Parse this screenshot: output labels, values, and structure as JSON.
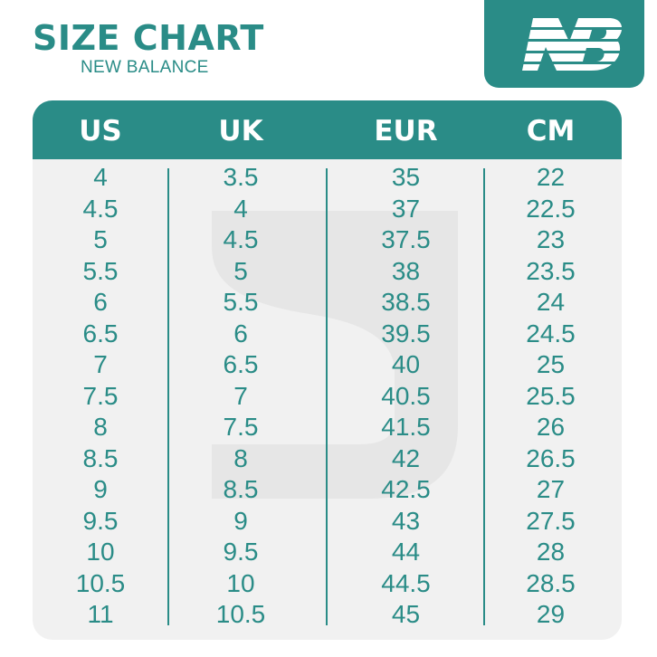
{
  "header": {
    "title": "SIZE CHART",
    "subtitle": "NEW BALANCE"
  },
  "logo": {
    "text": "NB",
    "icon": "new-balance-logo"
  },
  "colors": {
    "accent": "#2a8c87",
    "card_bg": "#f1f1f1",
    "header_text": "#ffffff"
  },
  "table": {
    "columns": [
      "US",
      "UK",
      "EUR",
      "CM"
    ],
    "rows": [
      [
        "4",
        "3.5",
        "35",
        "22"
      ],
      [
        "4.5",
        "4",
        "37",
        "22.5"
      ],
      [
        "5",
        "4.5",
        "37.5",
        "23"
      ],
      [
        "5.5",
        "5",
        "38",
        "23.5"
      ],
      [
        "6",
        "5.5",
        "38.5",
        "24"
      ],
      [
        "6.5",
        "6",
        "39.5",
        "24.5"
      ],
      [
        "7",
        "6.5",
        "40",
        "25"
      ],
      [
        "7.5",
        "7",
        "40.5",
        "25.5"
      ],
      [
        "8",
        "7.5",
        "41.5",
        "26"
      ],
      [
        "8.5",
        "8",
        "42",
        "26.5"
      ],
      [
        "9",
        "8.5",
        "42.5",
        "27"
      ],
      [
        "9.5",
        "9",
        "43",
        "27.5"
      ],
      [
        "10",
        "9.5",
        "44",
        "28"
      ],
      [
        "10.5",
        "10",
        "44.5",
        "28.5"
      ],
      [
        "11",
        "10.5",
        "45",
        "29"
      ]
    ]
  }
}
